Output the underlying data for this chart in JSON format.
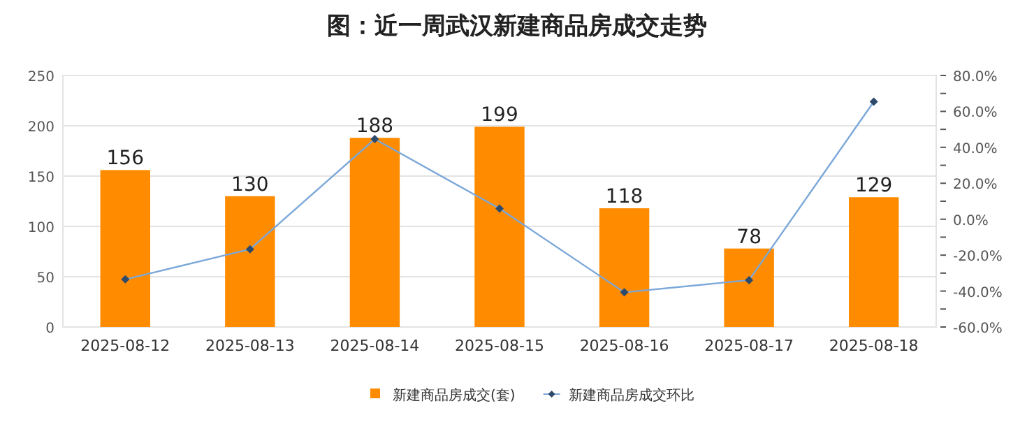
{
  "chart_data": {
    "type": "bar",
    "title": "图：近一周武汉新建商品房成交走势",
    "categories": [
      "2025-08-12",
      "2025-08-13",
      "2025-08-14",
      "2025-08-15",
      "2025-08-16",
      "2025-08-17",
      "2025-08-18"
    ],
    "series": [
      {
        "name": "新建商品房成交(套)",
        "color": "#ff8c00",
        "values": [
          156,
          130,
          188,
          199,
          118,
          78,
          129
        ],
        "value_labels": [
          "156",
          "130",
          "188",
          "199",
          "118",
          "78",
          "129"
        ]
      },
      {
        "name": "新建商品房成交环比",
        "type": "line",
        "axis": "y2",
        "color": "#7ba7d9",
        "marker": "diamond",
        "values": [
          -33.5,
          -16.7,
          44.6,
          5.9,
          -40.7,
          -33.9,
          65.4
        ]
      }
    ],
    "ylim": [
      0,
      250
    ],
    "yticks": [
      0,
      50,
      100,
      150,
      200,
      250
    ],
    "y2lim": [
      -60,
      80
    ],
    "y2ticks": [
      {
        "value": -60,
        "label": "-60.0%"
      },
      {
        "value": -50,
        "label": null
      },
      {
        "value": -40,
        "label": "-40.0%"
      },
      {
        "value": -30,
        "label": null
      },
      {
        "value": -20,
        "label": "-20.0%"
      },
      {
        "value": -10,
        "label": null
      },
      {
        "value": 0,
        "label": "0.0%"
      },
      {
        "value": 10,
        "label": null
      },
      {
        "value": 20,
        "label": "20.0%"
      },
      {
        "value": 30,
        "label": null
      },
      {
        "value": 40,
        "label": "40.0%"
      },
      {
        "value": 50,
        "label": null
      },
      {
        "value": 60,
        "label": "60.0%"
      },
      {
        "value": 70,
        "label": null
      },
      {
        "value": 80,
        "label": "80.0%"
      }
    ],
    "grid": "y",
    "legend": "bottom"
  }
}
